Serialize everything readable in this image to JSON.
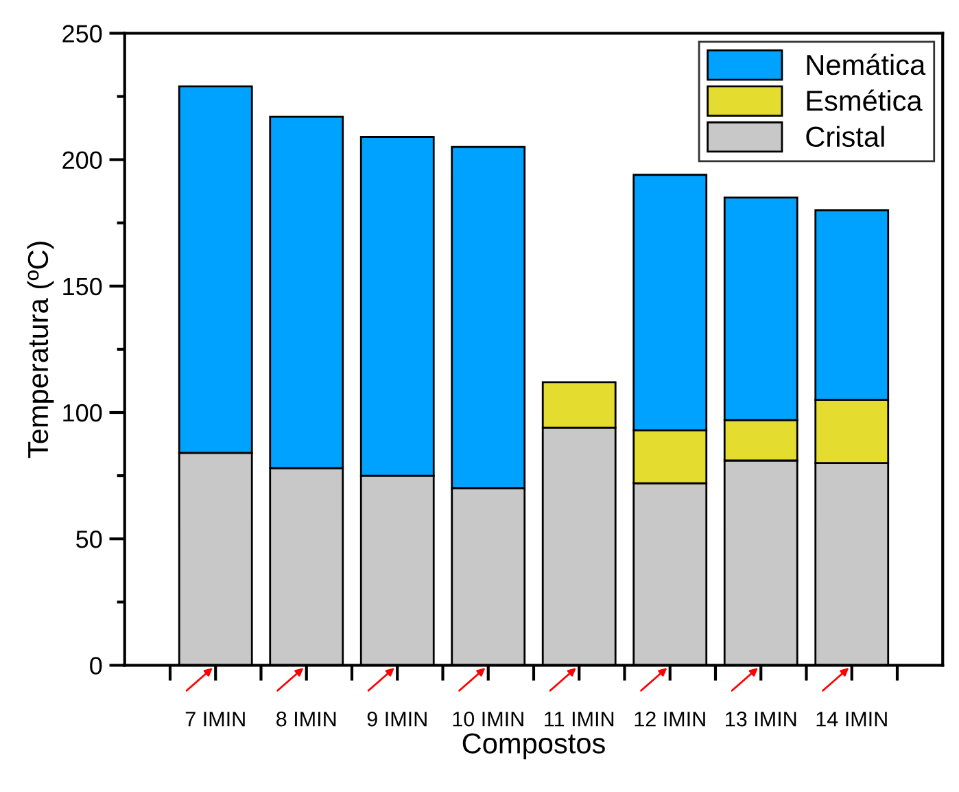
{
  "chart_data": {
    "type": "bar",
    "stacked": true,
    "xlabel": "Compostos",
    "ylabel": "Temperatura (ºC)",
    "categories": [
      "7 IMIN",
      "8 IMIN",
      "9 IMIN",
      "10 IMIN",
      "11 IMIN",
      "12 IMIN",
      "13 IMIN",
      "14 IMIN"
    ],
    "series": [
      {
        "name": "Cristal",
        "color": "#c8c8c8",
        "values": [
          84,
          78,
          75,
          70,
          94,
          72,
          81,
          80
        ]
      },
      {
        "name": "Esmética",
        "color": "#e5dc30",
        "values": [
          null,
          null,
          null,
          null,
          18,
          21,
          16,
          25
        ]
      },
      {
        "name": "Nemática",
        "color": "#00a2ff",
        "values": [
          145,
          139,
          134,
          135,
          null,
          101,
          88,
          75
        ]
      }
    ],
    "ylim": [
      0,
      250
    ],
    "yticks": [
      0,
      50,
      100,
      150,
      200,
      250
    ],
    "legend": "top right",
    "grid": false
  }
}
